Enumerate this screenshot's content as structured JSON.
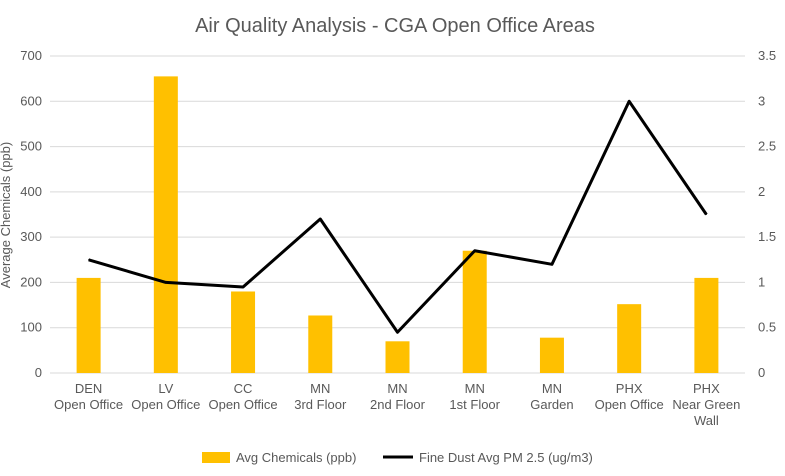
{
  "chart_data": {
    "type": "bar",
    "title": "Air Quality Analysis - CGA Open Office Areas",
    "ylabel": "Average Chemicals (ppb)",
    "y2label": "",
    "categories": [
      [
        "DEN",
        "Open Office"
      ],
      [
        "LV",
        "Open Office"
      ],
      [
        "CC",
        "Open Office"
      ],
      [
        "MN",
        "3rd Floor"
      ],
      [
        "MN",
        "2nd Floor"
      ],
      [
        "MN",
        "1st Floor"
      ],
      [
        "MN",
        "Garden"
      ],
      [
        "PHX",
        "Open Office"
      ],
      [
        "PHX",
        "Near Green",
        "Wall"
      ]
    ],
    "series": [
      {
        "name": "Avg Chemicals (ppb)",
        "type": "bar",
        "axis": "left",
        "color": "#FFC000",
        "values": [
          210,
          655,
          180,
          127,
          70,
          270,
          78,
          152,
          210
        ]
      },
      {
        "name": "Fine Dust Avg PM 2.5 (ug/m3)",
        "type": "line",
        "axis": "right",
        "color": "#000000",
        "values": [
          1.25,
          1.0,
          0.95,
          1.7,
          0.45,
          1.35,
          1.2,
          3.0,
          1.75
        ]
      }
    ],
    "ylim": [
      0,
      700
    ],
    "y2lim": [
      0,
      3.5
    ],
    "yticks": [
      "0",
      "100",
      "200",
      "300",
      "400",
      "500",
      "600",
      "700"
    ],
    "y2ticks": [
      "0",
      "0.5",
      "1",
      "1.5",
      "2",
      "2.5",
      "3",
      "3.5"
    ],
    "grid": true,
    "legend": "bottom"
  }
}
